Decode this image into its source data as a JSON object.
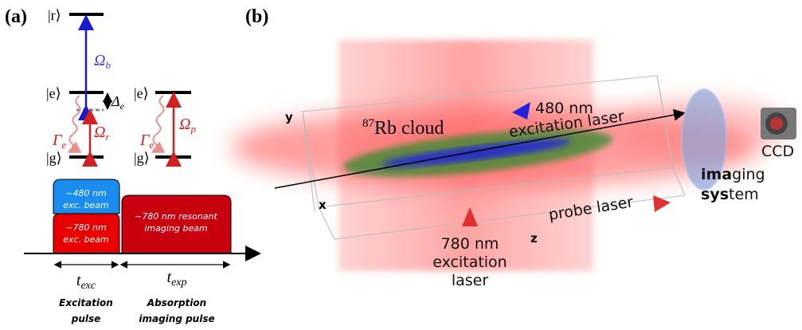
{
  "panel_a": {
    "label": "(a)",
    "levels": {
      "r": "|r⟩",
      "e_left": "|e⟩",
      "g_left": "|g⟩",
      "e_right": "|e⟩",
      "g_right": "|g⟩"
    },
    "symbols": {
      "omega_b": {
        "symbol": "Ω",
        "subscript": "b"
      },
      "delta_e": {
        "symbol": "Δ",
        "subscript": "e"
      },
      "gamma_left": {
        "symbol": "Γ",
        "subscript": "e"
      },
      "omega_r": {
        "symbol": "Ω",
        "subscript": "r"
      },
      "gamma_right": {
        "symbol": "Γ",
        "subscript": "e"
      },
      "omega_p": {
        "symbol": "Ω",
        "subscript": "p"
      }
    },
    "beams": {
      "blue": [
        "~480 nm",
        "exc. beam"
      ],
      "red": [
        "~780 nm",
        "exc. beam"
      ],
      "imaging": [
        "~780 nm resonant",
        "imaging beam"
      ]
    },
    "times": {
      "exc": {
        "symbol": "t",
        "subscript": "exc"
      },
      "exp": {
        "symbol": "t",
        "subscript": "exp"
      }
    },
    "pulses": {
      "excitation": [
        "Excitation",
        "pulse"
      ],
      "absorption": [
        "Absorption",
        "imaging pulse"
      ]
    }
  },
  "panel_b": {
    "label": "(b)",
    "cloud": {
      "superscript": "87",
      "text": "Rb cloud"
    },
    "blue_laser": [
      "480 nm",
      "excitation laser"
    ],
    "red_laser": [
      "780 nm",
      "excitation",
      "laser"
    ],
    "probe": "probe laser",
    "ccd": "CCD",
    "imaging": [
      {
        "bold": "ima",
        "normal": "ging"
      },
      {
        "bold": "sys",
        "normal": "tem"
      }
    ],
    "axes": {
      "x": "x",
      "y": "y",
      "z": "z"
    }
  }
}
